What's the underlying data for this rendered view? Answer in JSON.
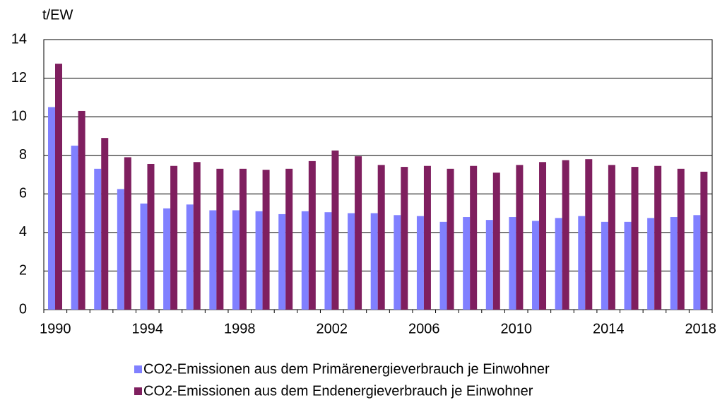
{
  "chart_data": {
    "type": "bar",
    "y_label": "t/EW",
    "categories": [
      "1990",
      null,
      null,
      null,
      "1994",
      null,
      null,
      null,
      "1998",
      null,
      null,
      null,
      "2002",
      null,
      null,
      null,
      "2006",
      null,
      null,
      null,
      "2010",
      null,
      null,
      null,
      "2014",
      null,
      null,
      null,
      "2018"
    ],
    "series": [
      {
        "name": "CO2-Emissionen aus dem Primärenergieverbrauch je Einwohner",
        "color": "#8080ff",
        "values": [
          10.5,
          8.5,
          7.3,
          6.25,
          5.5,
          5.25,
          5.45,
          5.15,
          5.15,
          5.1,
          4.95,
          5.1,
          5.05,
          5.0,
          5.0,
          4.9,
          4.85,
          4.55,
          4.8,
          4.65,
          4.8,
          4.6,
          4.75,
          4.85,
          4.55,
          4.55,
          4.75,
          4.8,
          4.9
        ]
      },
      {
        "name": "CO2-Emissionen aus dem Endenergieverbrauch je Einwohner",
        "color": "#7f1f5f",
        "values": [
          12.75,
          10.3,
          8.9,
          7.9,
          7.55,
          7.45,
          7.65,
          7.3,
          7.3,
          7.25,
          7.3,
          7.7,
          8.25,
          7.95,
          7.5,
          7.4,
          7.45,
          7.3,
          7.45,
          7.1,
          7.5,
          7.65,
          7.75,
          7.8,
          7.5,
          7.4,
          7.45,
          7.3,
          7.15
        ]
      }
    ],
    "ylim": [
      0,
      14
    ],
    "yticks": [
      0,
      2,
      4,
      6,
      8,
      10,
      12,
      14
    ],
    "grid": true
  }
}
